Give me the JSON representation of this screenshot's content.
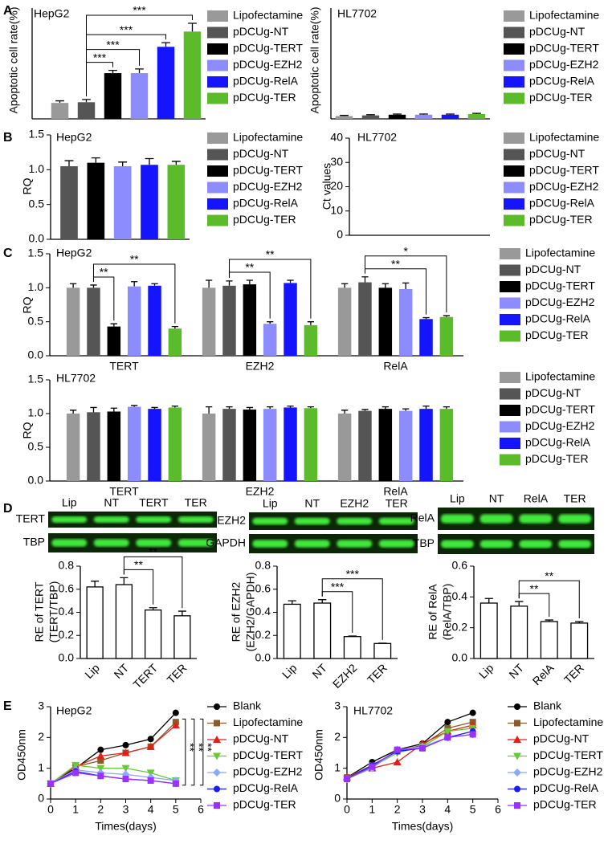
{
  "panels": [
    "A",
    "B",
    "C",
    "D",
    "E"
  ],
  "blots": [
    {
      "lanes": [
        "Lip",
        "NT",
        "TERT",
        "TER"
      ],
      "rows": [
        "TERT",
        "TBP"
      ]
    },
    {
      "lanes": [
        "Lip",
        "NT",
        "EZH2",
        "TER"
      ],
      "rows": [
        "EZH2",
        "GAPDH"
      ]
    },
    {
      "lanes": [
        "Lip",
        "NT",
        "RelA",
        "TER"
      ],
      "rows": [
        "RelA",
        "TBP"
      ]
    }
  ],
  "chart_data": [
    {
      "type": "bar",
      "title": "HepG2",
      "ylabel": "Apoptotic cell rate(%)",
      "ylim": [
        0,
        80
      ],
      "categories": [
        null
      ],
      "series": [
        {
          "name": "Lipofectamine",
          "color": "#999999",
          "values": [
            11.5
          ],
          "errors": [
            1.5
          ]
        },
        {
          "name": "pDCUg-NT",
          "color": "#555555",
          "values": [
            12
          ],
          "errors": [
            2
          ]
        },
        {
          "name": "pDCUg-TERT",
          "color": "#000000",
          "values": [
            33
          ],
          "errors": [
            2
          ]
        },
        {
          "name": "pDCUg-EZH2",
          "color": "#8c8cff",
          "values": [
            33
          ],
          "errors": [
            3
          ]
        },
        {
          "name": "pDCUg-RelA",
          "color": "#1414ff",
          "values": [
            52
          ],
          "errors": [
            3
          ]
        },
        {
          "name": "pDCUg-TER",
          "color": "#5cbb2a",
          "values": [
            63
          ],
          "errors": [
            6
          ]
        }
      ],
      "significance": [
        {
          "between": [
            "pDCUg-NT",
            "pDCUg-TERT"
          ],
          "label": "***"
        },
        {
          "between": [
            "pDCUg-NT",
            "pDCUg-EZH2"
          ],
          "label": "***"
        },
        {
          "between": [
            "pDCUg-NT",
            "pDCUg-RelA"
          ],
          "label": "***"
        },
        {
          "between": [
            "pDCUg-NT",
            "pDCUg-TER"
          ],
          "label": "***"
        }
      ]
    },
    {
      "type": "bar",
      "title": "HL7702",
      "ylabel": "Apoptotic cell rate(%)",
      "ylim": [
        0,
        80
      ],
      "categories": [
        null
      ],
      "series": [
        {
          "name": "Lipofectamine",
          "color": "#999999",
          "values": [
            2
          ],
          "errors": [
            0.5
          ]
        },
        {
          "name": "pDCUg-NT",
          "color": "#555555",
          "values": [
            2.5
          ],
          "errors": [
            0.5
          ]
        },
        {
          "name": "pDCUg-TERT",
          "color": "#000000",
          "values": [
            3
          ],
          "errors": [
            0.5
          ]
        },
        {
          "name": "pDCUg-EZH2",
          "color": "#8c8cff",
          "values": [
            3
          ],
          "errors": [
            0.5
          ]
        },
        {
          "name": "pDCUg-RelA",
          "color": "#1414ff",
          "values": [
            3
          ],
          "errors": [
            0.5
          ]
        },
        {
          "name": "pDCUg-TER",
          "color": "#5cbb2a",
          "values": [
            3.5
          ],
          "errors": [
            0.5
          ]
        }
      ]
    },
    {
      "type": "bar",
      "title": "HepG2",
      "ylabel": "RQ",
      "ylim": [
        0,
        1.5
      ],
      "yticks": [
        {
          "value": 0,
          "label": "0.0"
        },
        0.5,
        {
          "value": 1,
          "label": "1.0"
        },
        1.5
      ],
      "categories": [
        null
      ],
      "series": [
        {
          "name": "Lipofectamine",
          "color": "#999999",
          "values": [
            null
          ],
          "errors": [
            null
          ]
        },
        {
          "name": "pDCUg-NT",
          "color": "#555555",
          "values": [
            1.05
          ],
          "errors": [
            0.08
          ]
        },
        {
          "name": "pDCUg-TERT",
          "color": "#000000",
          "values": [
            1.1
          ],
          "errors": [
            0.07
          ]
        },
        {
          "name": "pDCUg-EZH2",
          "color": "#8c8cff",
          "values": [
            1.05
          ],
          "errors": [
            0.06
          ]
        },
        {
          "name": "pDCUg-RelA",
          "color": "#1414ff",
          "values": [
            1.07
          ],
          "errors": [
            0.09
          ]
        },
        {
          "name": "pDCUg-TER",
          "color": "#5cbb2a",
          "values": [
            1.07
          ],
          "errors": [
            0.05
          ]
        }
      ]
    },
    {
      "type": "bar",
      "title": "HL7702",
      "ylabel": "Ct values",
      "ylim": [
        0,
        40
      ],
      "yticks": [
        0,
        10,
        20,
        30,
        40
      ],
      "categories": [
        null
      ],
      "series": [
        {
          "name": "Lipofectamine",
          "color": "#999999",
          "values": [
            null
          ],
          "errors": [
            null
          ]
        },
        {
          "name": "pDCUg-NT",
          "color": "#555555",
          "values": [
            null
          ],
          "errors": [
            null
          ]
        },
        {
          "name": "pDCUg-TERT",
          "color": "#000000",
          "values": [
            null
          ],
          "errors": [
            null
          ]
        },
        {
          "name": "pDCUg-EZH2",
          "color": "#8c8cff",
          "values": [
            null
          ],
          "errors": [
            null
          ]
        },
        {
          "name": "pDCUg-RelA",
          "color": "#1414ff",
          "values": [
            null
          ],
          "errors": [
            null
          ]
        },
        {
          "name": "pDCUg-TER",
          "color": "#5cbb2a",
          "values": [
            null
          ],
          "errors": [
            null
          ]
        }
      ]
    },
    {
      "type": "bar",
      "title": "HepG2",
      "ylabel": "RQ",
      "ylim": [
        0,
        1.5
      ],
      "yticks": [
        {
          "value": 0,
          "label": "0.0"
        },
        0.5,
        {
          "value": 1,
          "label": "1.0"
        },
        1.5
      ],
      "categories": [
        "TERT",
        "EZH2",
        "RelA"
      ],
      "series": [
        {
          "name": "Lipofectamine",
          "color": "#999999",
          "values": [
            1.0,
            1.0,
            1.0
          ],
          "errors": [
            0.06,
            0.11,
            0.06
          ]
        },
        {
          "name": "pDCUg-NT",
          "color": "#555555",
          "values": [
            1.0,
            1.03,
            1.08
          ],
          "errors": [
            0.04,
            0.07,
            0.08
          ]
        },
        {
          "name": "pDCUg-TERT",
          "color": "#000000",
          "values": [
            0.43,
            1.05,
            1.0
          ],
          "errors": [
            0.04,
            0.06,
            0.06
          ]
        },
        {
          "name": "pDCUg-EZH2",
          "color": "#8c8cff",
          "values": [
            1.02,
            0.47,
            0.98
          ],
          "errors": [
            0.07,
            0.03,
            0.09
          ]
        },
        {
          "name": "pDCUg-RelA",
          "color": "#1414ff",
          "values": [
            1.03,
            1.07,
            0.54
          ],
          "errors": [
            0.03,
            0.04,
            0.02
          ]
        },
        {
          "name": "pDCUg-TER",
          "color": "#5cbb2a",
          "values": [
            0.4,
            0.45,
            0.57
          ],
          "errors": [
            0.03,
            0.05,
            0.02
          ]
        }
      ],
      "significance": [
        {
          "group": "TERT",
          "between": [
            "pDCUg-NT",
            "pDCUg-TERT"
          ],
          "label": "**"
        },
        {
          "group": "TERT",
          "between": [
            "pDCUg-NT",
            "pDCUg-TER"
          ],
          "label": "**"
        },
        {
          "group": "EZH2",
          "between": [
            "pDCUg-NT",
            "pDCUg-EZH2"
          ],
          "label": "**"
        },
        {
          "group": "EZH2",
          "between": [
            "pDCUg-NT",
            "pDCUg-TER"
          ],
          "label": "**"
        },
        {
          "group": "RelA",
          "between": [
            "pDCUg-NT",
            "pDCUg-RelA"
          ],
          "label": "**"
        },
        {
          "group": "RelA",
          "between": [
            "pDCUg-NT",
            "pDCUg-TER"
          ],
          "label": "*"
        }
      ]
    },
    {
      "type": "bar",
      "title": "HL7702",
      "ylabel": "RQ",
      "ylim": [
        0,
        1.5
      ],
      "yticks": [
        {
          "value": 0,
          "label": "0.0"
        },
        0.5,
        {
          "value": 1,
          "label": "1.0"
        },
        1.5
      ],
      "categories": [
        "TERT",
        "EZH2",
        "RelA"
      ],
      "series": [
        {
          "name": "Lipofectamine",
          "color": "#999999",
          "values": [
            1.0,
            1.0,
            1.0
          ],
          "errors": [
            0.05,
            0.1,
            0.05
          ]
        },
        {
          "name": "pDCUg-NT",
          "color": "#555555",
          "values": [
            1.02,
            1.07,
            1.04
          ],
          "errors": [
            0.07,
            0.03,
            0.02
          ]
        },
        {
          "name": "pDCUg-TERT",
          "color": "#000000",
          "values": [
            1.03,
            1.06,
            1.07
          ],
          "errors": [
            0.05,
            0.03,
            0.03
          ]
        },
        {
          "name": "pDCUg-EZH2",
          "color": "#8c8cff",
          "values": [
            1.1,
            1.07,
            1.04
          ],
          "errors": [
            0.02,
            0.03,
            0.03
          ]
        },
        {
          "name": "pDCUg-RelA",
          "color": "#1414ff",
          "values": [
            1.07,
            1.09,
            1.07
          ],
          "errors": [
            0.02,
            0.02,
            0.04
          ]
        },
        {
          "name": "pDCUg-TER",
          "color": "#5cbb2a",
          "values": [
            1.09,
            1.08,
            1.07
          ],
          "errors": [
            0.02,
            0.02,
            0.03
          ]
        }
      ]
    },
    {
      "type": "bar",
      "ylabel": [
        "RE of TERT",
        "(TERT/TBP)"
      ],
      "ylim": [
        0,
        0.8
      ],
      "yticks": [
        {
          "value": 0,
          "label": "0.0"
        },
        0.2,
        0.4,
        0.6,
        0.8
      ],
      "color": "#ffffff",
      "categories": [
        "Lip",
        "NT",
        "TERT",
        "TER"
      ],
      "values": [
        0.62,
        0.64,
        0.42,
        0.37
      ],
      "errors": [
        0.05,
        0.06,
        0.02,
        0.04
      ],
      "significance": [
        {
          "between": [
            "NT",
            "TERT"
          ],
          "label": "**"
        },
        {
          "between": [
            "NT",
            "TER"
          ],
          "label": "**"
        }
      ]
    },
    {
      "type": "bar",
      "ylabel": [
        "RE of EZH2",
        "(EZH2/GAPDH)"
      ],
      "ylim": [
        0,
        0.8
      ],
      "yticks": [
        {
          "value": 0,
          "label": "0.0"
        },
        0.2,
        0.4,
        0.6,
        0.8
      ],
      "color": "#ffffff",
      "categories": [
        "Lip",
        "NT",
        "EZH2",
        "TER"
      ],
      "values": [
        0.47,
        0.48,
        0.19,
        0.13
      ],
      "errors": [
        0.03,
        0.03,
        0.005,
        0.003
      ],
      "significance": [
        {
          "between": [
            "NT",
            "EZH2"
          ],
          "label": "***"
        },
        {
          "between": [
            "NT",
            "TER"
          ],
          "label": "***"
        }
      ]
    },
    {
      "type": "bar",
      "ylabel": [
        "RE of RelA",
        "(RelA/TBP)"
      ],
      "ylim": [
        0,
        0.6
      ],
      "yticks": [
        {
          "value": 0,
          "label": "0.0"
        },
        0.2,
        0.4,
        0.6
      ],
      "color": "#ffffff",
      "categories": [
        "Lip",
        "NT",
        "RelA",
        "TER"
      ],
      "values": [
        0.36,
        0.34,
        0.24,
        0.23
      ],
      "errors": [
        0.03,
        0.03,
        0.01,
        0.01
      ],
      "significance": [
        {
          "between": [
            "NT",
            "RelA"
          ],
          "label": "**"
        },
        {
          "between": [
            "NT",
            "TER"
          ],
          "label": "**"
        }
      ]
    },
    {
      "type": "line",
      "title": "HepG2",
      "ylabel": "OD450nm",
      "xlabel": "Times(days)",
      "xlim": [
        0,
        6
      ],
      "xticks": [
        0,
        1,
        2,
        3,
        4,
        5,
        6
      ],
      "ylim": [
        0,
        3
      ],
      "yticks": [
        0,
        1,
        2,
        3
      ],
      "x": [
        0,
        1,
        2,
        3,
        4,
        5
      ],
      "annotations": [
        "**",
        "**",
        "**"
      ],
      "series": [
        {
          "name": "Blank",
          "color": "#000000",
          "marker": "circle",
          "values": [
            0.5,
            1.0,
            1.6,
            1.75,
            1.95,
            2.8
          ]
        },
        {
          "name": "Lipofectamine",
          "color": "#8b5a2b",
          "marker": "square",
          "values": [
            0.5,
            1.05,
            1.25,
            1.5,
            1.7,
            2.5
          ]
        },
        {
          "name": "pDCUg-NT",
          "color": "#e0201b",
          "marker": "triangle-up",
          "values": [
            0.5,
            1.05,
            1.4,
            1.5,
            1.7,
            2.4
          ]
        },
        {
          "name": "pDCUg-TERT",
          "color": "#66cc33",
          "marker": "triangle-down",
          "values": [
            0.5,
            1.1,
            1.0,
            1.0,
            0.85,
            0.6
          ]
        },
        {
          "name": "pDCUg-EZH2",
          "color": "#88aaff",
          "marker": "diamond",
          "values": [
            0.5,
            0.95,
            0.85,
            0.8,
            0.7,
            0.6
          ]
        },
        {
          "name": "pDCUg-RelA",
          "color": "#1a1aff",
          "marker": "circle",
          "values": [
            0.5,
            0.9,
            0.75,
            0.65,
            0.6,
            0.5
          ]
        },
        {
          "name": "pDCUg-TER",
          "color": "#9b30ff",
          "marker": "square",
          "values": [
            0.5,
            0.85,
            0.75,
            0.65,
            0.6,
            0.5
          ]
        }
      ]
    },
    {
      "type": "line",
      "title": "HL7702",
      "ylabel": "OD450nm",
      "xlabel": "Times(days)",
      "xlim": [
        0,
        6
      ],
      "xticks": [
        0,
        1,
        2,
        3,
        4,
        5,
        6
      ],
      "ylim": [
        0,
        3
      ],
      "yticks": [
        0,
        1,
        2,
        3
      ],
      "x": [
        0,
        1,
        2,
        3,
        4,
        5
      ],
      "series": [
        {
          "name": "Blank",
          "color": "#000000",
          "marker": "circle",
          "values": [
            0.7,
            1.2,
            1.6,
            1.8,
            2.5,
            2.8
          ]
        },
        {
          "name": "Lipofectamine",
          "color": "#8b5a2b",
          "marker": "square",
          "values": [
            0.7,
            1.1,
            1.55,
            1.75,
            2.3,
            2.5
          ]
        },
        {
          "name": "pDCUg-NT",
          "color": "#e0201b",
          "marker": "triangle-up",
          "values": [
            0.7,
            1.0,
            1.2,
            1.8,
            2.2,
            2.4
          ]
        },
        {
          "name": "pDCUg-TERT",
          "color": "#66cc33",
          "marker": "triangle-down",
          "values": [
            0.65,
            1.05,
            1.5,
            1.7,
            2.2,
            2.3
          ]
        },
        {
          "name": "pDCUg-EZH2",
          "color": "#88aaff",
          "marker": "diamond",
          "values": [
            0.65,
            1.0,
            1.6,
            1.7,
            2.0,
            2.1
          ]
        },
        {
          "name": "pDCUg-RelA",
          "color": "#1a1aff",
          "marker": "circle",
          "values": [
            0.65,
            1.1,
            1.55,
            1.65,
            2.0,
            2.2
          ]
        },
        {
          "name": "pDCUg-TER",
          "color": "#9b30ff",
          "marker": "square",
          "values": [
            0.65,
            1.05,
            1.6,
            1.65,
            2.0,
            2.1
          ]
        }
      ]
    }
  ]
}
